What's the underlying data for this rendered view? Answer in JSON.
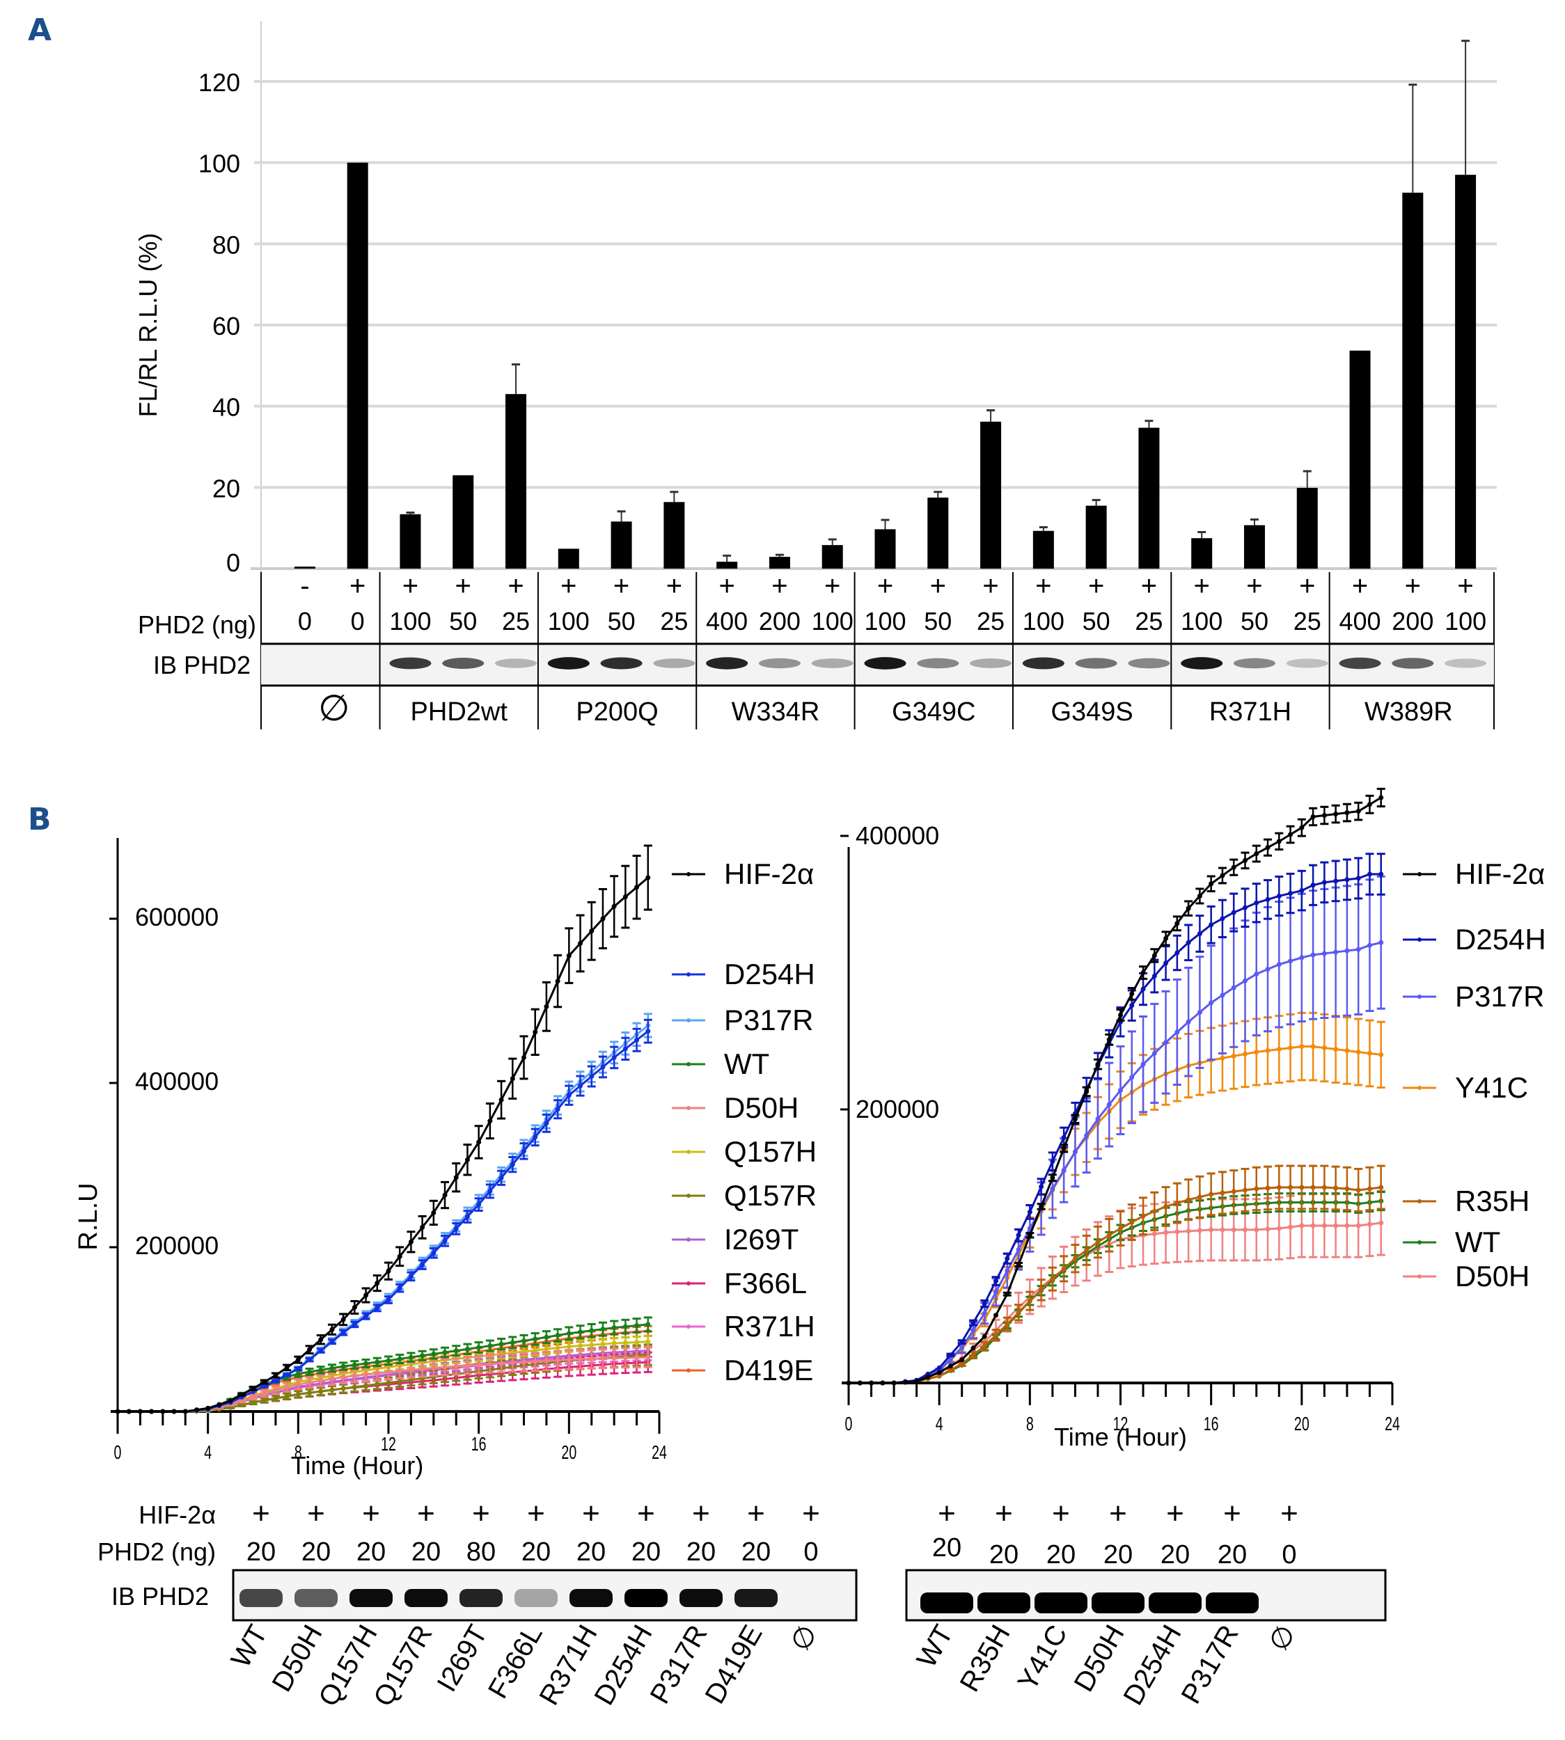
{
  "panels": {
    "a_label": "A",
    "b_label": "B"
  },
  "chart_data": [
    {
      "id": "panel_a_bar",
      "type": "bar",
      "title": "",
      "xlabel": "",
      "ylabel": "FL/RL R.L.U (%)",
      "ylim": [
        0,
        130
      ],
      "yticks": [
        0,
        20,
        40,
        60,
        80,
        100,
        120
      ],
      "grid": true,
      "values": [
        0.5,
        100,
        13.4,
        23,
        43,
        4.9,
        11.6,
        16.4,
        1.7,
        2.9,
        5.8,
        9.7,
        17.5,
        36.2,
        9.3,
        15.5,
        34.7,
        7.5,
        10.7,
        19.9,
        53.7,
        92.6,
        97
      ],
      "error_upper": [
        0.8,
        100,
        13.8,
        23.3,
        50.3,
        5.1,
        14.1,
        18.9,
        3.2,
        3.4,
        7.2,
        12,
        18.9,
        39,
        10.2,
        16.9,
        36.4,
        9,
        12.1,
        24,
        54,
        119.2,
        130
      ],
      "table": {
        "row_labels": {
          "hif": "",
          "phd2": "PHD2 (ng)",
          "ib": "IB PHD2"
        },
        "hif_signs": [
          "-",
          "+",
          "+",
          "+",
          "+",
          "+",
          "+",
          "+",
          "+",
          "+",
          "+",
          "+",
          "+",
          "+",
          "+",
          "+",
          "+",
          "+",
          "+",
          "+",
          "+",
          "+",
          "+"
        ],
        "phd2_ng": [
          "0",
          "0",
          "100",
          "50",
          "25",
          "100",
          "50",
          "25",
          "400",
          "200",
          "100",
          "100",
          "50",
          "25",
          "100",
          "50",
          "25",
          "100",
          "50",
          "25",
          "400",
          "200",
          "100"
        ],
        "band_intensity": [
          0,
          0,
          0.8,
          0.65,
          0.25,
          0.95,
          0.85,
          0.3,
          0.9,
          0.4,
          0.3,
          0.95,
          0.45,
          0.3,
          0.85,
          0.55,
          0.45,
          0.95,
          0.45,
          0.2,
          0.75,
          0.6,
          0.2
        ],
        "groups": [
          {
            "label": "∅",
            "count": 2
          },
          {
            "label": "PHD2wt",
            "count": 3
          },
          {
            "label": "P200Q",
            "count": 3
          },
          {
            "label": "W334R",
            "count": 3
          },
          {
            "label": "G349C",
            "count": 3
          },
          {
            "label": "G349S",
            "count": 3
          },
          {
            "label": "R371H",
            "count": 3
          },
          {
            "label": "W389R",
            "count": 3
          }
        ]
      }
    },
    {
      "id": "panel_b_left",
      "type": "line",
      "xlabel": "Time (Hour)",
      "ylabel": "R.L.U",
      "xlim": [
        0,
        24
      ],
      "ylim": [
        0,
        700000
      ],
      "xticks": [
        0,
        4,
        8,
        12,
        16,
        20,
        24
      ],
      "yticks": [
        200000,
        400000,
        600000
      ],
      "ytick_labels": [
        "200000",
        "400000",
        "600000"
      ],
      "x": [
        0,
        2,
        3,
        4,
        5,
        6,
        7,
        8,
        10,
        12,
        14,
        16,
        18,
        20,
        22,
        23.5
      ],
      "series": [
        {
          "name": "HIF-2α",
          "color": "#000000",
          "err": 0.06,
          "values": [
            0,
            0,
            0,
            4000,
            13000,
            28000,
            44000,
            63000,
            112000,
            171000,
            242000,
            328000,
            431000,
            555000,
            615000,
            650000
          ]
        },
        {
          "name": "D254H",
          "color": "#1530e0",
          "err": 0.03,
          "values": [
            0,
            0,
            0,
            3000,
            11000,
            24000,
            37000,
            52000,
            96000,
            136000,
            193000,
            252000,
            317000,
            385000,
            431000,
            463000
          ]
        },
        {
          "name": "P317R",
          "color": "#5aa6f0",
          "err": 0.03,
          "values": [
            0,
            0,
            0,
            3000,
            11000,
            24000,
            38000,
            53000,
            98000,
            139000,
            196000,
            256000,
            321000,
            390000,
            437000,
            470000
          ]
        },
        {
          "name": "WT",
          "color": "#1a7f1a",
          "err": 0.08,
          "values": [
            0,
            0,
            0,
            2000,
            14000,
            28000,
            38000,
            46000,
            55000,
            62000,
            70000,
            78000,
            86000,
            95000,
            102000,
            106000
          ]
        },
        {
          "name": "D50H",
          "color": "#f08080",
          "err": 0.18,
          "values": [
            0,
            0,
            0,
            1000,
            9000,
            18000,
            26000,
            33000,
            42000,
            48000,
            53000,
            57000,
            60000,
            63000,
            65000,
            66000
          ]
        },
        {
          "name": "Q157H",
          "color": "#c8c010",
          "err": 0.08,
          "values": [
            0,
            0,
            0,
            1000,
            9000,
            19000,
            28000,
            36000,
            46000,
            54000,
            61000,
            67000,
            73000,
            79000,
            83000,
            85000
          ]
        },
        {
          "name": "Q157R",
          "color": "#7f7f10",
          "err": 0.18,
          "values": [
            0,
            0,
            0,
            500,
            5000,
            11000,
            16000,
            21000,
            28000,
            35000,
            42000,
            49000,
            56000,
            62000,
            66000,
            69000
          ]
        },
        {
          "name": "I269T",
          "color": "#b060d0",
          "err": 0.1,
          "values": [
            0,
            0,
            0,
            1000,
            8000,
            16000,
            23000,
            30000,
            38000,
            45000,
            52000,
            58000,
            63000,
            68000,
            72000,
            74000
          ]
        },
        {
          "name": "F366L",
          "color": "#e0207a",
          "err": 0.2,
          "values": [
            0,
            0,
            0,
            500,
            5000,
            11000,
            16000,
            21000,
            28000,
            33000,
            38000,
            44000,
            49000,
            54000,
            58000,
            60000
          ]
        },
        {
          "name": "R371H",
          "color": "#f060d0",
          "err": 0.12,
          "values": [
            0,
            0,
            0,
            1000,
            8000,
            16000,
            23000,
            29000,
            37000,
            44000,
            50000,
            56000,
            61000,
            66000,
            69000,
            71000
          ]
        },
        {
          "name": "D419E",
          "color": "#f06020",
          "err": 0.06,
          "values": [
            0,
            0,
            0,
            1500,
            12000,
            25000,
            35000,
            42000,
            51000,
            58000,
            65000,
            73000,
            81000,
            89000,
            95000,
            98000
          ]
        }
      ]
    },
    {
      "id": "panel_b_right",
      "type": "line",
      "xlabel": "Time (Hour)",
      "ylabel": "",
      "xlim": [
        0,
        24
      ],
      "ylim": [
        0,
        440000
      ],
      "xticks": [
        0,
        4,
        8,
        12,
        16,
        20,
        24
      ],
      "yticks": [
        200000,
        400000
      ],
      "ytick_labels": [
        "200000",
        "400000"
      ],
      "x": [
        0,
        1,
        2,
        3,
        4,
        5,
        6,
        7,
        8,
        9,
        10,
        11,
        12,
        13,
        14,
        15,
        16,
        17,
        18,
        19,
        20,
        20.5,
        21,
        22,
        22.5,
        23,
        23.5
      ],
      "series": [
        {
          "name": "HIF-2α",
          "color": "#000000",
          "err": 0.015,
          "values": [
            0,
            0,
            0,
            1000,
            7600,
            17000,
            34000,
            65000,
            108000,
            150000,
            193000,
            233000,
            269000,
            300000,
            325000,
            347000,
            365000,
            377000,
            387000,
            396000,
            406000,
            414000,
            415000,
            417000,
            418000,
            423000,
            428000
          ]
        },
        {
          "name": "D254H",
          "color": "#0a14b0",
          "err": 0.04,
          "values": [
            0,
            0,
            0,
            2000,
            11000,
            30000,
            58000,
            91000,
            125000,
            162000,
            197000,
            232000,
            264000,
            288000,
            307000,
            322000,
            335000,
            344000,
            351000,
            356000,
            360000,
            364000,
            366000,
            368000,
            369000,
            372000,
            372000
          ]
        },
        {
          "name": "P317R",
          "color": "#5a5af0",
          "err": 0.15,
          "values": [
            0,
            0,
            0,
            1500,
            9000,
            26000,
            51000,
            82000,
            113000,
            142000,
            169000,
            193000,
            214000,
            233000,
            249000,
            264000,
            278000,
            289000,
            299000,
            306000,
            311000,
            313000,
            314000,
            316000,
            317000,
            320000,
            322000
          ]
        },
        {
          "name": "Y41C",
          "color": "#f08a10",
          "err": 0.1,
          "values": [
            0,
            0,
            0,
            1500,
            9000,
            25000,
            46000,
            77000,
            110000,
            141000,
            169000,
            190000,
            207000,
            218000,
            226000,
            232000,
            236000,
            239000,
            242000,
            244000,
            246000,
            246000,
            245000,
            243000,
            242000,
            241000,
            240000
          ]
        },
        {
          "name": "R35H",
          "color": "#b8600a",
          "err": 0.11,
          "values": [
            0,
            0,
            0,
            1000,
            5000,
            14000,
            27000,
            43000,
            60000,
            76000,
            91000,
            103000,
            113000,
            122000,
            129000,
            134000,
            138000,
            140000,
            142000,
            143000,
            143000,
            143000,
            143000,
            142000,
            141000,
            142000,
            143000
          ]
        },
        {
          "name": "WT",
          "color": "#1a7f1a",
          "err": 0.05,
          "values": [
            0,
            0,
            0,
            1000,
            5000,
            13000,
            25000,
            42000,
            60000,
            75000,
            89000,
            100000,
            110000,
            117000,
            122000,
            126000,
            128000,
            130000,
            131000,
            132000,
            132000,
            132000,
            132000,
            132000,
            131000,
            132000,
            133000
          ]
        },
        {
          "name": "D50H",
          "color": "#f08080",
          "err": 0.2,
          "values": [
            0,
            0,
            0,
            1500,
            8000,
            18000,
            30000,
            47000,
            63000,
            77000,
            89000,
            98000,
            105000,
            108000,
            110000,
            111000,
            112000,
            112000,
            112000,
            113000,
            115000,
            115000,
            115000,
            115000,
            115000,
            116000,
            117000
          ]
        }
      ]
    }
  ],
  "blot_b_left": {
    "row_labels": {
      "hif": "HIF-2α",
      "phd2": "PHD2 (ng)",
      "ib": "IB PHD2"
    },
    "hif_signs": [
      "+",
      "+",
      "+",
      "+",
      "+",
      "+",
      "+",
      "+",
      "+",
      "+",
      "+"
    ],
    "phd2_ng": [
      "20",
      "20",
      "20",
      "20",
      "80",
      "20",
      "20",
      "20",
      "20",
      "20",
      "0"
    ],
    "lanes": [
      "WT",
      "D50H",
      "Q157H",
      "Q157R",
      "I269T",
      "F366L",
      "R371H",
      "D254H",
      "P317R",
      "D419E",
      "∅"
    ],
    "band_intensity": [
      0.7,
      0.6,
      0.95,
      0.95,
      0.85,
      0.3,
      0.95,
      1.0,
      0.95,
      0.9,
      0
    ]
  },
  "blot_b_right": {
    "hif_signs": [
      "+",
      "+",
      "+",
      "+",
      "+",
      "+",
      "+"
    ],
    "phd2_ng": [
      "20",
      "20",
      "20",
      "20",
      "20",
      "20",
      "0"
    ],
    "lanes": [
      "WT",
      "R35H",
      "Y41C",
      "D50H",
      "D254H",
      "P317R",
      "∅"
    ],
    "band_intensity": [
      1.0,
      1.0,
      1.0,
      1.0,
      1.0,
      1.0,
      0
    ]
  }
}
